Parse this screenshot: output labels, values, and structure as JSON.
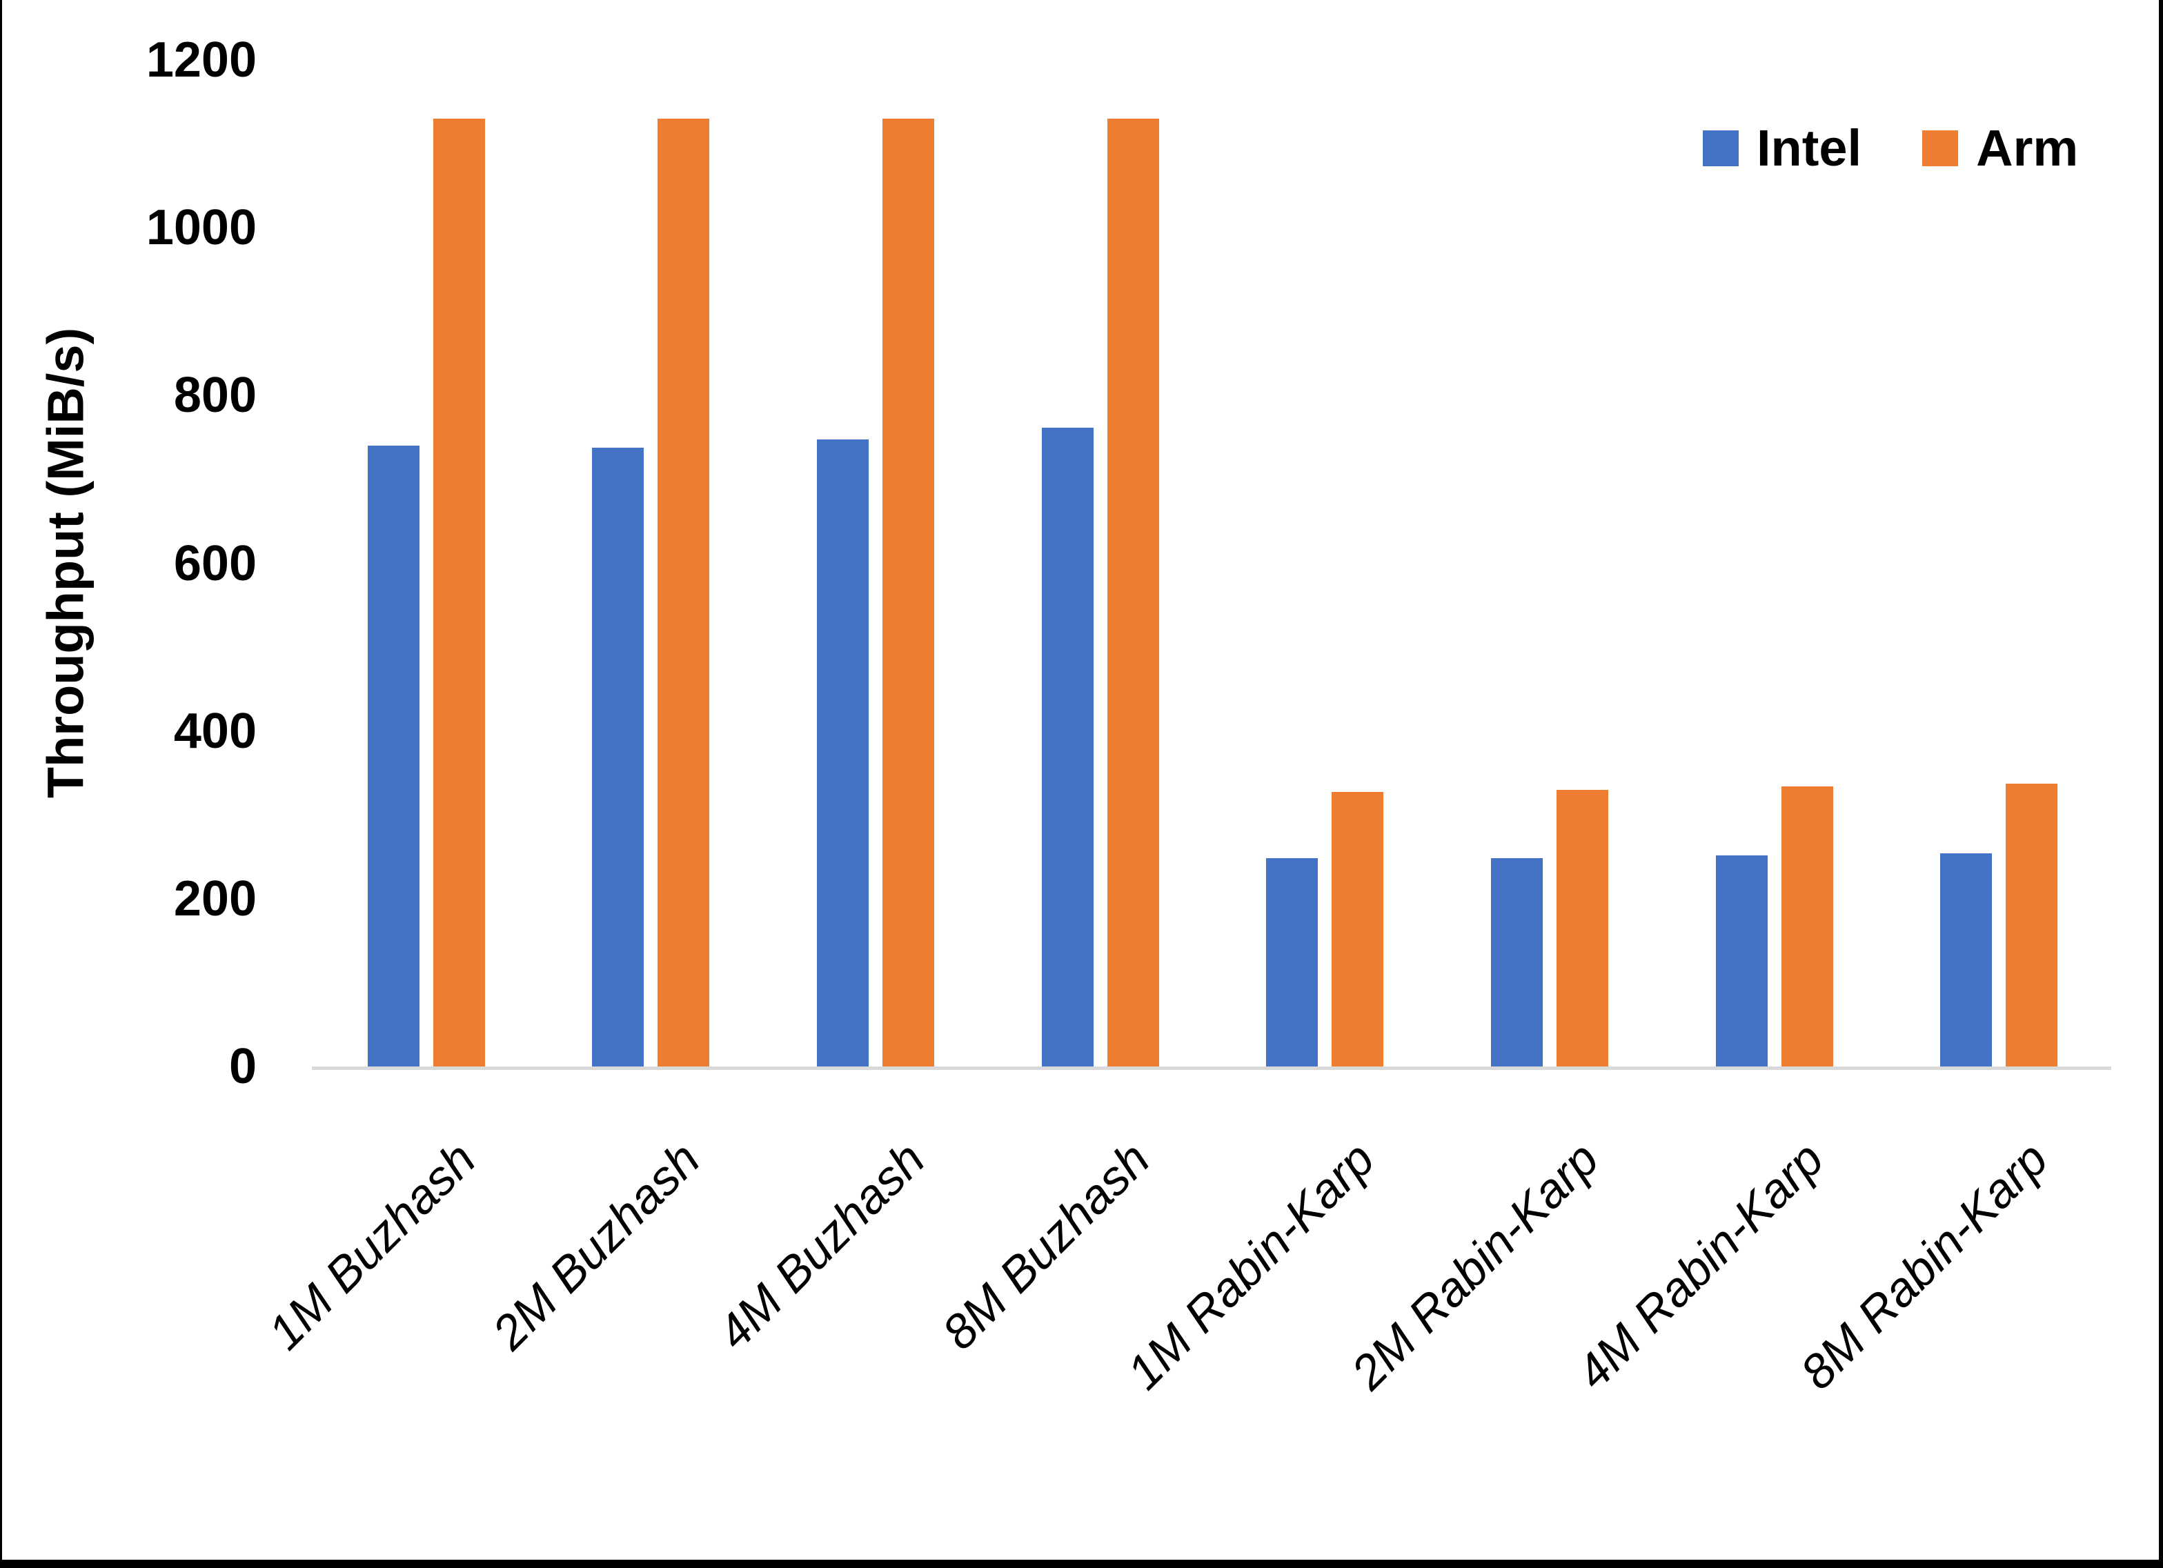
{
  "chart_data": {
    "type": "bar",
    "title": "",
    "xlabel": "",
    "ylabel": "Throughput (MiB/s)",
    "ylim": [
      0,
      1200
    ],
    "ytick_step": 200,
    "yticks": [
      0,
      200,
      400,
      600,
      800,
      1000,
      1200
    ],
    "grid": false,
    "legend_position": "top-right",
    "background_color": "#FFFFFF",
    "axis_line_color": "#D9D9D9",
    "text_color": "#000000",
    "categories": [
      "1M Buzhash",
      "2M Buzhash",
      "4M Buzhash",
      "8M Buzhash",
      "1M Rabin-Karp",
      "2M Rabin-Karp",
      "4M Rabin-Karp",
      "8M Rabin-Karp"
    ],
    "series": [
      {
        "name": "Intel",
        "color": "#4472C4",
        "values": [
          740,
          738,
          748,
          762,
          248,
          248,
          252,
          254
        ]
      },
      {
        "name": "Arm",
        "color": "#ED7D31",
        "values": [
          1130,
          1130,
          1130,
          1130,
          327,
          330,
          334,
          337
        ]
      }
    ]
  }
}
